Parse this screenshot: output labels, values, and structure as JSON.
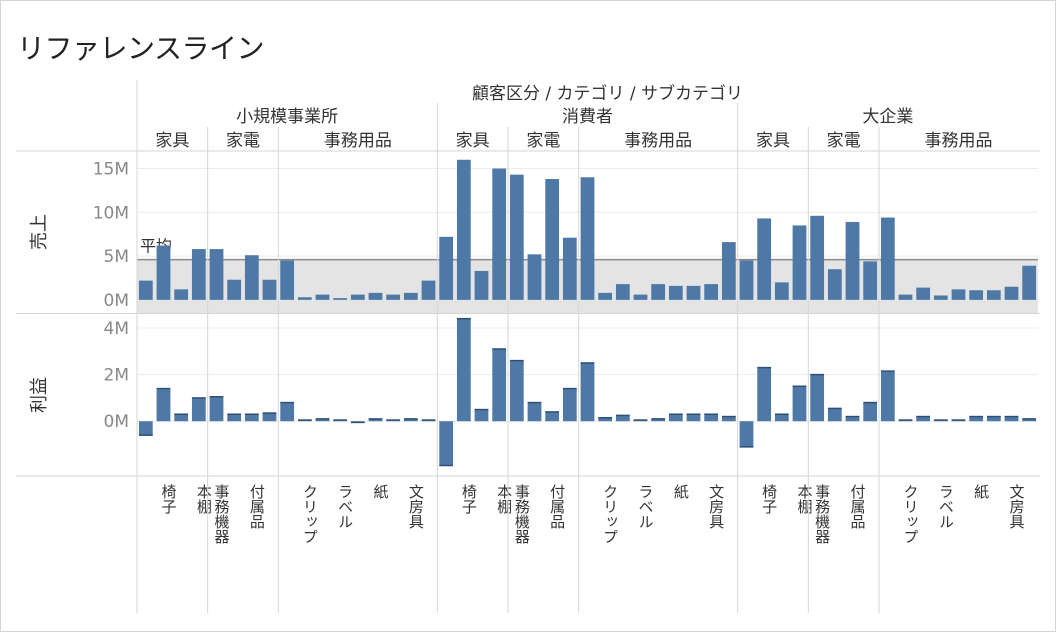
{
  "title": "リファレンスライン",
  "chart_data": {
    "type": "bar",
    "column_header": "顧客区分 / カテゴリ / サブカテゴリ",
    "segments": [
      {
        "name": "小規模事業所",
        "categories": [
          {
            "name": "家具",
            "subs": [
              {
                "name": "",
                "sales": 2.2,
                "profit": -0.6
              },
              {
                "name": "椅子",
                "sales": 6.2,
                "profit": 1.4
              },
              {
                "name": "",
                "sales": 1.2,
                "profit": 0.3
              },
              {
                "name": "本棚",
                "sales": 5.8,
                "profit": 1.0
              }
            ]
          },
          {
            "name": "家電",
            "subs": [
              {
                "name": "事務機器",
                "sales": 5.8,
                "profit": 1.05
              },
              {
                "name": "",
                "sales": 2.3,
                "profit": 0.3
              },
              {
                "name": "付属品",
                "sales": 5.1,
                "profit": 0.3
              },
              {
                "name": "",
                "sales": 2.3,
                "profit": 0.35
              }
            ]
          },
          {
            "name": "事務用品",
            "subs": [
              {
                "name": "",
                "sales": 4.5,
                "profit": 0.8
              },
              {
                "name": "クリップ",
                "sales": 0.3,
                "profit": 0.05
              },
              {
                "name": "",
                "sales": 0.6,
                "profit": 0.1
              },
              {
                "name": "ラベル",
                "sales": 0.2,
                "profit": 0.05
              },
              {
                "name": "",
                "sales": 0.6,
                "profit": -0.05
              },
              {
                "name": "紙",
                "sales": 0.8,
                "profit": 0.1
              },
              {
                "name": "",
                "sales": 0.6,
                "profit": 0.05
              },
              {
                "name": "文房具",
                "sales": 0.8,
                "profit": 0.1
              },
              {
                "name": "",
                "sales": 2.2,
                "profit": 0.05
              }
            ]
          }
        ]
      },
      {
        "name": "消費者",
        "categories": [
          {
            "name": "家具",
            "subs": [
              {
                "name": "",
                "sales": 7.2,
                "profit": -1.9
              },
              {
                "name": "椅子",
                "sales": 16.0,
                "profit": 4.4
              },
              {
                "name": "",
                "sales": 3.3,
                "profit": 0.5
              },
              {
                "name": "本棚",
                "sales": 15.0,
                "profit": 3.1
              }
            ]
          },
          {
            "name": "家電",
            "subs": [
              {
                "name": "事務機器",
                "sales": 14.3,
                "profit": 2.6
              },
              {
                "name": "",
                "sales": 5.2,
                "profit": 0.8
              },
              {
                "name": "付属品",
                "sales": 13.8,
                "profit": 0.4
              },
              {
                "name": "",
                "sales": 7.1,
                "profit": 1.4
              }
            ]
          },
          {
            "name": "事務用品",
            "subs": [
              {
                "name": "",
                "sales": 14.0,
                "profit": 2.5
              },
              {
                "name": "クリップ",
                "sales": 0.8,
                "profit": 0.15
              },
              {
                "name": "",
                "sales": 1.8,
                "profit": 0.25
              },
              {
                "name": "ラベル",
                "sales": 0.6,
                "profit": 0.05
              },
              {
                "name": "",
                "sales": 1.8,
                "profit": 0.1
              },
              {
                "name": "紙",
                "sales": 1.6,
                "profit": 0.3
              },
              {
                "name": "",
                "sales": 1.6,
                "profit": 0.3
              },
              {
                "name": "文房具",
                "sales": 1.8,
                "profit": 0.3
              },
              {
                "name": "",
                "sales": 6.6,
                "profit": 0.2
              }
            ]
          }
        ]
      },
      {
        "name": "大企業",
        "categories": [
          {
            "name": "家具",
            "subs": [
              {
                "name": "",
                "sales": 4.5,
                "profit": -1.1
              },
              {
                "name": "椅子",
                "sales": 9.3,
                "profit": 2.3
              },
              {
                "name": "",
                "sales": 2.0,
                "profit": 0.3
              },
              {
                "name": "本棚",
                "sales": 8.5,
                "profit": 1.5
              }
            ]
          },
          {
            "name": "家電",
            "subs": [
              {
                "name": "事務機器",
                "sales": 9.6,
                "profit": 2.0
              },
              {
                "name": "",
                "sales": 3.5,
                "profit": 0.55
              },
              {
                "name": "付属品",
                "sales": 8.9,
                "profit": 0.2
              },
              {
                "name": "",
                "sales": 4.4,
                "profit": 0.8
              }
            ]
          },
          {
            "name": "事務用品",
            "subs": [
              {
                "name": "",
                "sales": 9.4,
                "profit": 2.15
              },
              {
                "name": "クリップ",
                "sales": 0.6,
                "profit": 0.05
              },
              {
                "name": "",
                "sales": 1.4,
                "profit": 0.2
              },
              {
                "name": "ラベル",
                "sales": 0.5,
                "profit": 0.05
              },
              {
                "name": "",
                "sales": 1.2,
                "profit": 0.05
              },
              {
                "name": "紙",
                "sales": 1.1,
                "profit": 0.2
              },
              {
                "name": "",
                "sales": 1.1,
                "profit": 0.2
              },
              {
                "name": "文房具",
                "sales": 1.5,
                "profit": 0.2
              },
              {
                "name": "",
                "sales": 3.9,
                "profit": 0.1
              }
            ]
          }
        ]
      }
    ],
    "panes": [
      {
        "name": "売上",
        "unit": "M",
        "ticks": [
          0,
          5,
          10,
          15
        ],
        "tick_labels": [
          "0M",
          "5M",
          "10M",
          "15M"
        ],
        "ylim": [
          -1.5,
          17
        ]
      },
      {
        "name": "利益",
        "unit": "M",
        "ticks": [
          0,
          2,
          4
        ],
        "tick_labels": [
          "0M",
          "2M",
          "4M"
        ],
        "ylim": [
          -2.35,
          4.6
        ]
      }
    ],
    "reference_line": {
      "pane": "売上",
      "label": "平均",
      "value": 4.6,
      "band": [
        -1.5,
        4.6
      ]
    },
    "bar_color": "#4e79a7"
  }
}
